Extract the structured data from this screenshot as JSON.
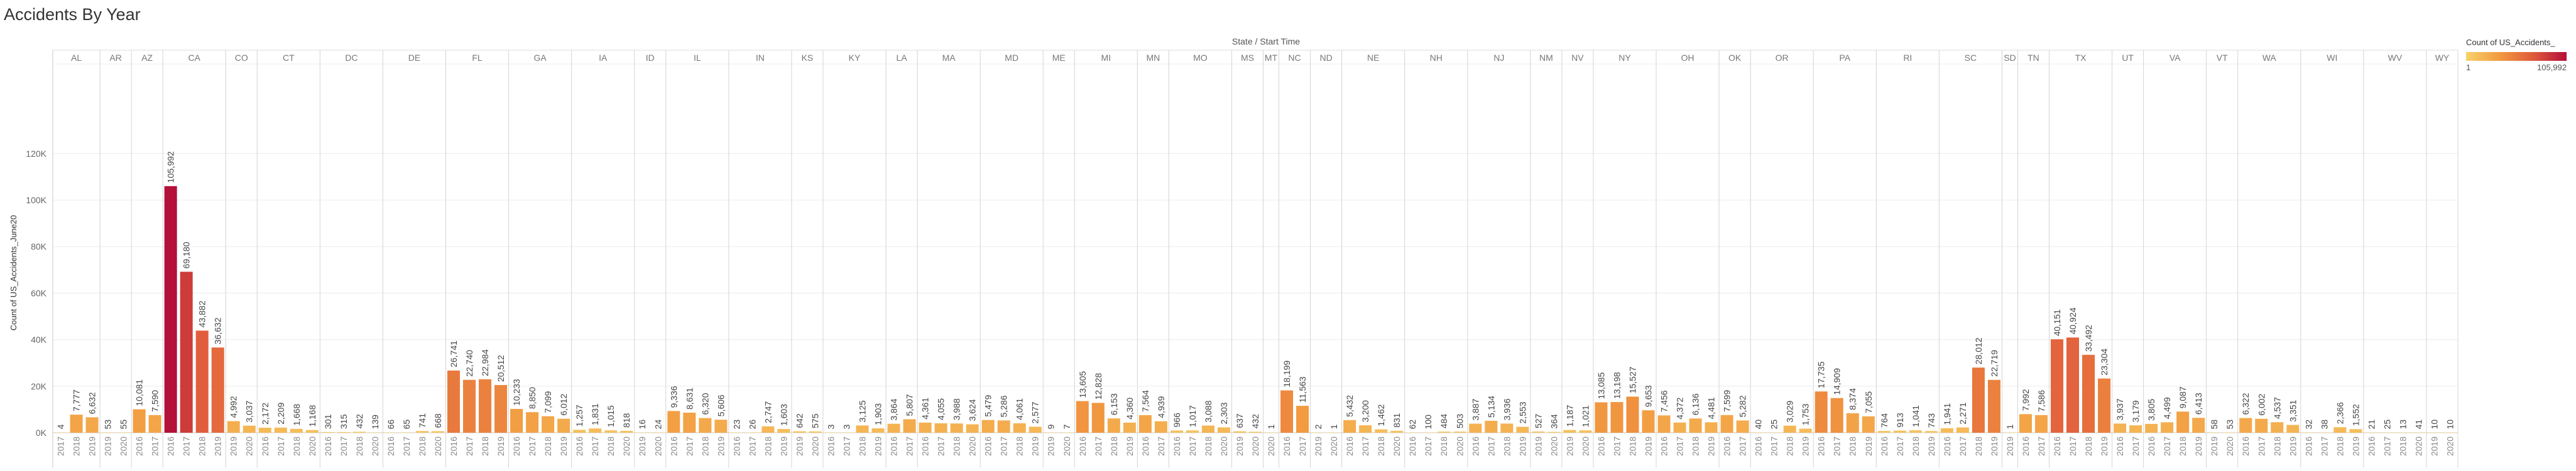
{
  "header": {
    "title": "Accidents By Year"
  },
  "legend": {
    "title": "Count of US_Accidents_",
    "min_label": "1",
    "max_label": "105,992",
    "colors": [
      "#f7d26a",
      "#f29a40",
      "#e05a3c",
      "#b3103a"
    ]
  },
  "chart_data": {
    "type": "bar",
    "title": "Accidents By Year",
    "top_axis_label": "State / Start Time",
    "ylabel": "Count of US_Accidents_June20",
    "ylim": [
      0,
      130000
    ],
    "yticks": [
      0,
      20000,
      40000,
      60000,
      80000,
      100000,
      120000
    ],
    "ytick_labels": [
      "0K",
      "20K",
      "40K",
      "60K",
      "80K",
      "100K",
      "120K"
    ],
    "grid": true,
    "legend_placement": "top-right",
    "states": [
      {
        "name": "AL",
        "bars": [
          {
            "year": "2017",
            "value": 4
          },
          {
            "year": "2018",
            "value": 7777
          },
          {
            "year": "2019",
            "value": 6632
          }
        ]
      },
      {
        "name": "AR",
        "bars": [
          {
            "year": "2019",
            "value": 53
          },
          {
            "year": "2020",
            "value": 55
          }
        ]
      },
      {
        "name": "AZ",
        "bars": [
          {
            "year": "2016",
            "value": 10081
          },
          {
            "year": "2017",
            "value": 7590
          }
        ]
      },
      {
        "name": "CA",
        "bars": [
          {
            "year": "2016",
            "value": 105992
          },
          {
            "year": "2017",
            "value": 69180
          },
          {
            "year": "2018",
            "value": 43882
          },
          {
            "year": "2019",
            "value": 36632
          }
        ]
      },
      {
        "name": "CO",
        "bars": [
          {
            "year": "2019",
            "value": 4992
          },
          {
            "year": "2020",
            "value": 3037
          }
        ]
      },
      {
        "name": "CT",
        "bars": [
          {
            "year": "2016",
            "value": 2172
          },
          {
            "year": "2017",
            "value": 2209
          },
          {
            "year": "2018",
            "value": 1668
          },
          {
            "year": "2020",
            "value": 1168
          }
        ]
      },
      {
        "name": "DC",
        "bars": [
          {
            "year": "2016",
            "value": 301
          },
          {
            "year": "2017",
            "value": 315
          },
          {
            "year": "2018",
            "value": 432
          },
          {
            "year": "2020",
            "value": 139
          }
        ]
      },
      {
        "name": "DE",
        "bars": [
          {
            "year": "2016",
            "value": 66
          },
          {
            "year": "2017",
            "value": 65
          },
          {
            "year": "2018",
            "value": 741
          },
          {
            "year": "2020",
            "value": 668
          }
        ]
      },
      {
        "name": "FL",
        "bars": [
          {
            "year": "2016",
            "value": 26741
          },
          {
            "year": "2017",
            "value": 22740
          },
          {
            "year": "2018",
            "value": 22984
          },
          {
            "year": "2019",
            "value": 20512
          }
        ]
      },
      {
        "name": "GA",
        "bars": [
          {
            "year": "2016",
            "value": 10233
          },
          {
            "year": "2017",
            "value": 8850
          },
          {
            "year": "2018",
            "value": 7099
          },
          {
            "year": "2019",
            "value": 6012
          }
        ]
      },
      {
        "name": "IA",
        "bars": [
          {
            "year": "2016",
            "value": 1257
          },
          {
            "year": "2017",
            "value": 1831
          },
          {
            "year": "2018",
            "value": 1015
          },
          {
            "year": "2020",
            "value": 818
          }
        ]
      },
      {
        "name": "ID",
        "bars": [
          {
            "year": "2019",
            "value": 16
          },
          {
            "year": "2020",
            "value": 24
          }
        ]
      },
      {
        "name": "IL",
        "bars": [
          {
            "year": "2016",
            "value": 9336
          },
          {
            "year": "2017",
            "value": 8631
          },
          {
            "year": "2018",
            "value": 6320
          },
          {
            "year": "2019",
            "value": 5606
          }
        ]
      },
      {
        "name": "IN",
        "bars": [
          {
            "year": "2016",
            "value": 23
          },
          {
            "year": "2017",
            "value": 26
          },
          {
            "year": "2018",
            "value": 2747
          },
          {
            "year": "2019",
            "value": 1603
          }
        ]
      },
      {
        "name": "KS",
        "bars": [
          {
            "year": "2019",
            "value": 642
          },
          {
            "year": "2020",
            "value": 575
          }
        ]
      },
      {
        "name": "KY",
        "bars": [
          {
            "year": "2016",
            "value": 3
          },
          {
            "year": "2017",
            "value": 3
          },
          {
            "year": "2018",
            "value": 3125
          },
          {
            "year": "2019",
            "value": 1903
          }
        ]
      },
      {
        "name": "LA",
        "bars": [
          {
            "year": "2016",
            "value": 3864
          },
          {
            "year": "2017",
            "value": 5807
          }
        ]
      },
      {
        "name": "MA",
        "bars": [
          {
            "year": "2016",
            "value": 4361
          },
          {
            "year": "2017",
            "value": 4055
          },
          {
            "year": "2018",
            "value": 3988
          },
          {
            "year": "2020",
            "value": 3624
          }
        ]
      },
      {
        "name": "MD",
        "bars": [
          {
            "year": "2016",
            "value": 5479
          },
          {
            "year": "2017",
            "value": 5286
          },
          {
            "year": "2018",
            "value": 4061
          },
          {
            "year": "2019",
            "value": 2577
          }
        ]
      },
      {
        "name": "ME",
        "bars": [
          {
            "year": "2019",
            "value": 9
          },
          {
            "year": "2020",
            "value": 7
          }
        ]
      },
      {
        "name": "MI",
        "bars": [
          {
            "year": "2016",
            "value": 13605
          },
          {
            "year": "2017",
            "value": 12828
          },
          {
            "year": "2018",
            "value": 6153
          },
          {
            "year": "2019",
            "value": 4360
          }
        ]
      },
      {
        "name": "MN",
        "bars": [
          {
            "year": "2016",
            "value": 7564
          },
          {
            "year": "2017",
            "value": 4939
          }
        ]
      },
      {
        "name": "MO",
        "bars": [
          {
            "year": "2016",
            "value": 966
          },
          {
            "year": "2017",
            "value": 1017
          },
          {
            "year": "2018",
            "value": 3088
          },
          {
            "year": "2020",
            "value": 2303
          }
        ]
      },
      {
        "name": "MS",
        "bars": [
          {
            "year": "2019",
            "value": 637
          },
          {
            "year": "2020",
            "value": 432
          }
        ]
      },
      {
        "name": "MT",
        "bars": [
          {
            "year": "2020",
            "value": 1
          }
        ]
      },
      {
        "name": "NC",
        "bars": [
          {
            "year": "2016",
            "value": 18199
          },
          {
            "year": "2017",
            "value": 11563
          }
        ]
      },
      {
        "name": "ND",
        "bars": [
          {
            "year": "2019",
            "value": 2
          },
          {
            "year": "2020",
            "value": 1
          }
        ]
      },
      {
        "name": "NE",
        "bars": [
          {
            "year": "2016",
            "value": 5432
          },
          {
            "year": "2017",
            "value": 3200
          },
          {
            "year": "2018",
            "value": 1462
          },
          {
            "year": "2020",
            "value": 831
          }
        ]
      },
      {
        "name": "NH",
        "bars": [
          {
            "year": "2016",
            "value": 62
          },
          {
            "year": "2017",
            "value": 100
          },
          {
            "year": "2018",
            "value": 484
          },
          {
            "year": "2020",
            "value": 503
          }
        ]
      },
      {
        "name": "NJ",
        "bars": [
          {
            "year": "2016",
            "value": 3887
          },
          {
            "year": "2017",
            "value": 5134
          },
          {
            "year": "2018",
            "value": 3936
          },
          {
            "year": "2019",
            "value": 2553
          }
        ]
      },
      {
        "name": "NM",
        "bars": [
          {
            "year": "2019",
            "value": 527
          },
          {
            "year": "2020",
            "value": 364
          }
        ]
      },
      {
        "name": "NV",
        "bars": [
          {
            "year": "2019",
            "value": 1187
          },
          {
            "year": "2020",
            "value": 1021
          }
        ]
      },
      {
        "name": "NY",
        "bars": [
          {
            "year": "2016",
            "value": 13085
          },
          {
            "year": "2017",
            "value": 13198
          },
          {
            "year": "2018",
            "value": 15527
          },
          {
            "year": "2019",
            "value": 9653
          }
        ]
      },
      {
        "name": "OH",
        "bars": [
          {
            "year": "2016",
            "value": 7456
          },
          {
            "year": "2017",
            "value": 4372
          },
          {
            "year": "2018",
            "value": 6136
          },
          {
            "year": "2019",
            "value": 4481
          }
        ]
      },
      {
        "name": "OK",
        "bars": [
          {
            "year": "2016",
            "value": 7599
          },
          {
            "year": "2017",
            "value": 5282
          }
        ]
      },
      {
        "name": "OR",
        "bars": [
          {
            "year": "2016",
            "value": 40
          },
          {
            "year": "2017",
            "value": 25
          },
          {
            "year": "2018",
            "value": 3029
          },
          {
            "year": "2019",
            "value": 1753
          }
        ]
      },
      {
        "name": "PA",
        "bars": [
          {
            "year": "2016",
            "value": 17735
          },
          {
            "year": "2017",
            "value": 14909
          },
          {
            "year": "2018",
            "value": 8374
          },
          {
            "year": "2019",
            "value": 7055
          }
        ]
      },
      {
        "name": "RI",
        "bars": [
          {
            "year": "2016",
            "value": 764
          },
          {
            "year": "2017",
            "value": 913
          },
          {
            "year": "2018",
            "value": 1041
          },
          {
            "year": "2019",
            "value": 743
          }
        ]
      },
      {
        "name": "SC",
        "bars": [
          {
            "year": "2016",
            "value": 1941
          },
          {
            "year": "2017",
            "value": 2271
          },
          {
            "year": "2018",
            "value": 28012
          },
          {
            "year": "2019",
            "value": 22719
          }
        ]
      },
      {
        "name": "SD",
        "bars": [
          {
            "year": "2019",
            "value": 1
          }
        ]
      },
      {
        "name": "TN",
        "bars": [
          {
            "year": "2016",
            "value": 7992
          },
          {
            "year": "2017",
            "value": 7586
          }
        ]
      },
      {
        "name": "TX",
        "bars": [
          {
            "year": "2016",
            "value": 40151
          },
          {
            "year": "2017",
            "value": 40924
          },
          {
            "year": "2018",
            "value": 33492
          },
          {
            "year": "2019",
            "value": 23304
          }
        ]
      },
      {
        "name": "UT",
        "bars": [
          {
            "year": "2016",
            "value": 3937
          },
          {
            "year": "2017",
            "value": 3179
          }
        ]
      },
      {
        "name": "VA",
        "bars": [
          {
            "year": "2016",
            "value": 3805
          },
          {
            "year": "2017",
            "value": 4499
          },
          {
            "year": "2018",
            "value": 9087
          },
          {
            "year": "2019",
            "value": 6413
          }
        ]
      },
      {
        "name": "VT",
        "bars": [
          {
            "year": "2019",
            "value": 58
          },
          {
            "year": "2020",
            "value": 53
          }
        ]
      },
      {
        "name": "WA",
        "bars": [
          {
            "year": "2016",
            "value": 6322
          },
          {
            "year": "2017",
            "value": 6002
          },
          {
            "year": "2018",
            "value": 4537
          },
          {
            "year": "2019",
            "value": 3351
          }
        ]
      },
      {
        "name": "WI",
        "bars": [
          {
            "year": "2016",
            "value": 32
          },
          {
            "year": "2017",
            "value": 38
          },
          {
            "year": "2018",
            "value": 2366
          },
          {
            "year": "2019",
            "value": 1552
          }
        ]
      },
      {
        "name": "WV",
        "bars": [
          {
            "year": "2016",
            "value": 21
          },
          {
            "year": "2017",
            "value": 25
          },
          {
            "year": "2018",
            "value": 13
          },
          {
            "year": "2020",
            "value": 41
          }
        ]
      },
      {
        "name": "WY",
        "bars": [
          {
            "year": "2019",
            "value": 10
          },
          {
            "year": "2020",
            "value": 10
          }
        ]
      }
    ]
  }
}
